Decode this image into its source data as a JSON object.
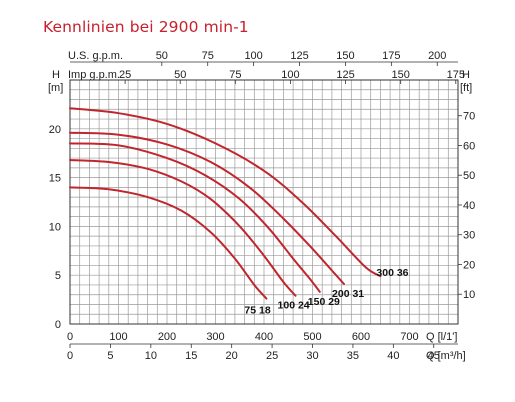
{
  "title": "Kennlinien bei 2900 min-1",
  "chart_data": {
    "type": "line",
    "title": "Kennlinien bei 2900 min-1",
    "grid": true,
    "axes": {
      "q_lmin": {
        "label": "Q [l/1']",
        "ticks": [
          0,
          100,
          200,
          300,
          400,
          500,
          600,
          700
        ],
        "range": [
          0,
          800
        ]
      },
      "q_m3h": {
        "label": "Q [m³/h]",
        "ticks": [
          0,
          5,
          10,
          15,
          20,
          25,
          30,
          35,
          40,
          45
        ],
        "range": [
          0,
          48
        ]
      },
      "us_gpm": {
        "label": "U.S. g.p.m.",
        "ticks": [
          50,
          75,
          100,
          125,
          150,
          175,
          200
        ],
        "range": [
          0,
          211.3
        ]
      },
      "imp_gpm": {
        "label": "Imp g.p.m.",
        "ticks": [
          25,
          50,
          75,
          100,
          125,
          150,
          175
        ],
        "range": [
          0,
          176
        ]
      },
      "h_m": {
        "label_top": "H",
        "label_unit": "[m]",
        "ticks": [
          0,
          5,
          10,
          15,
          20
        ],
        "range": [
          0,
          25
        ]
      },
      "h_ft": {
        "label_top": "H",
        "label_unit": "[ft]",
        "ticks": [
          10,
          20,
          30,
          40,
          50,
          60,
          70
        ],
        "range": [
          0,
          82
        ]
      }
    },
    "series": [
      {
        "name": "75 18",
        "points": [
          [
            0,
            14.0
          ],
          [
            80,
            13.8
          ],
          [
            160,
            13.0
          ],
          [
            230,
            11.6
          ],
          [
            290,
            9.4
          ],
          [
            340,
            6.7
          ],
          [
            380,
            4.0
          ],
          [
            405,
            2.6
          ]
        ]
      },
      {
        "name": "100 24",
        "points": [
          [
            0,
            16.8
          ],
          [
            80,
            16.6
          ],
          [
            160,
            15.9
          ],
          [
            230,
            14.6
          ],
          [
            290,
            12.8
          ],
          [
            350,
            10.0
          ],
          [
            400,
            7.0
          ],
          [
            440,
            4.3
          ],
          [
            465,
            2.9
          ]
        ]
      },
      {
        "name": "150 29",
        "points": [
          [
            0,
            18.5
          ],
          [
            100,
            18.3
          ],
          [
            200,
            17.0
          ],
          [
            280,
            15.2
          ],
          [
            350,
            12.8
          ],
          [
            410,
            9.8
          ],
          [
            460,
            6.7
          ],
          [
            495,
            4.6
          ],
          [
            515,
            3.3
          ]
        ]
      },
      {
        "name": "200 31",
        "points": [
          [
            0,
            19.6
          ],
          [
            100,
            19.4
          ],
          [
            200,
            18.4
          ],
          [
            290,
            16.6
          ],
          [
            370,
            14.0
          ],
          [
            440,
            10.8
          ],
          [
            500,
            7.7
          ],
          [
            545,
            5.2
          ],
          [
            565,
            4.1
          ]
        ]
      },
      {
        "name": "300 36",
        "points": [
          [
            0,
            22.1
          ],
          [
            100,
            21.6
          ],
          [
            200,
            20.5
          ],
          [
            300,
            18.5
          ],
          [
            400,
            15.7
          ],
          [
            480,
            12.4
          ],
          [
            550,
            8.9
          ],
          [
            610,
            5.8
          ],
          [
            640,
            4.9
          ]
        ]
      }
    ]
  }
}
